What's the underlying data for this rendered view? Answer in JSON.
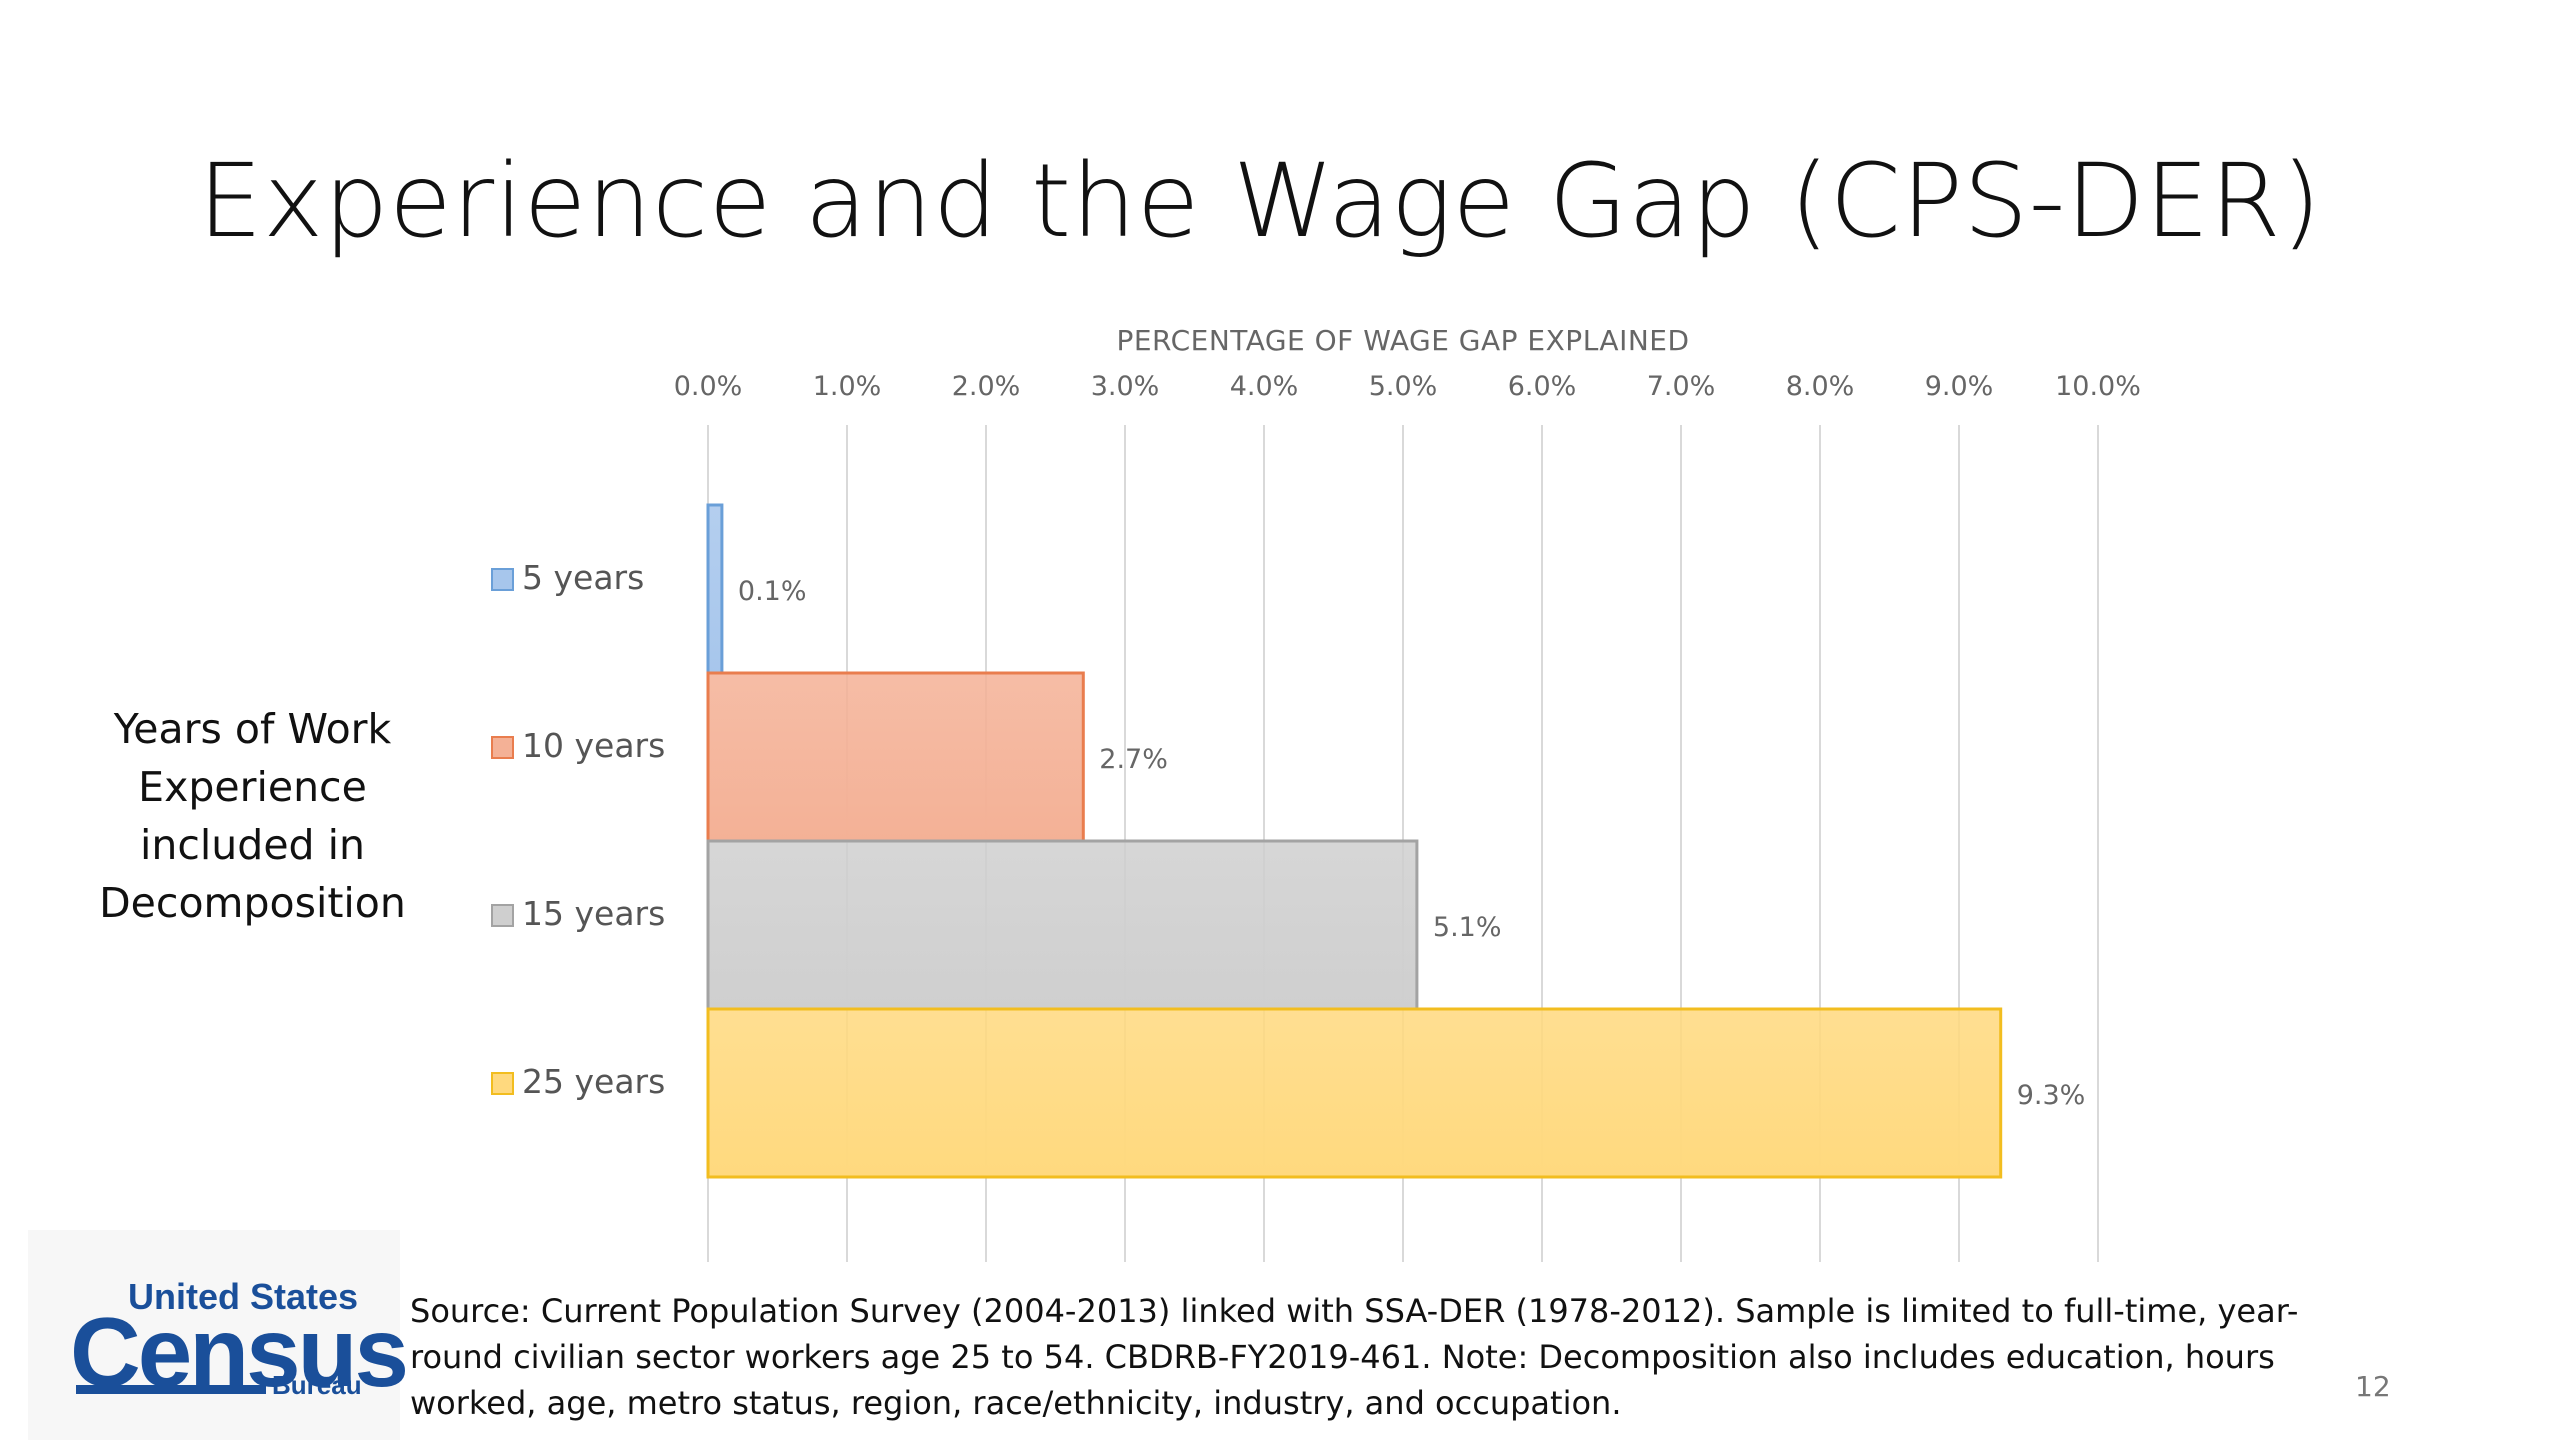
{
  "slide": {
    "title": "Experience and the Wage Gap (CPS-DER)",
    "side_label_lines": [
      "Years of Work",
      "Experience",
      "included in",
      "Decomposition"
    ],
    "source_text": "Source: Current Population Survey (2004-2013) linked with SSA-DER (1978-2012). Sample is limited to full-time, year-round civilian sector workers age 25 to 54. CBDRB-FY2019-461. Note: Decomposition also includes education, hours worked, age, metro status, region, race/ethnicity, industry, and occupation.",
    "page_number": "12",
    "logo": {
      "line1": "United States",
      "line2": "Census",
      "line3": "Bureau",
      "color": "#1a4f9a"
    }
  },
  "chart_data": {
    "type": "bar",
    "orientation": "horizontal",
    "title": "",
    "xlabel": "PERCENTAGE OF WAGE GAP EXPLAINED",
    "xlim": [
      0,
      10
    ],
    "x_ticks": [
      "0.0%",
      "1.0%",
      "2.0%",
      "3.0%",
      "4.0%",
      "5.0%",
      "6.0%",
      "7.0%",
      "8.0%",
      "9.0%",
      "10.0%"
    ],
    "x_axis_position": "top",
    "grid": true,
    "legend": "left",
    "series": [
      {
        "name": "5 years",
        "value": 0.1,
        "label": "0.1%",
        "fill": "#a7c6ec",
        "stroke": "#6a9fd8"
      },
      {
        "name": "10 years",
        "value": 2.7,
        "label": "2.7%",
        "fill": "#f4b196",
        "stroke": "#e97d4e"
      },
      {
        "name": "15 years",
        "value": 5.1,
        "label": "5.1%",
        "fill": "#cfcfcf",
        "stroke": "#a3a3a3"
      },
      {
        "name": "25 years",
        "value": 9.3,
        "label": "9.3%",
        "fill": "#ffd97e",
        "stroke": "#f2bd1f"
      }
    ]
  }
}
